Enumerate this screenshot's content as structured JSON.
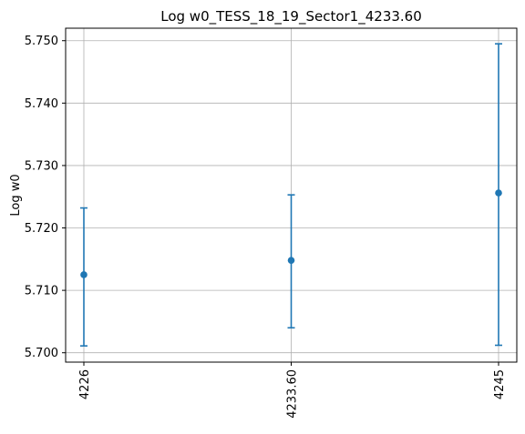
{
  "chart_data": {
    "type": "scatter",
    "title": "Log w0_TESS_18_19_Sector1_4233.60",
    "xlabel": "",
    "ylabel": "Log w0",
    "categories": [
      "4226",
      "4233.60",
      "4245"
    ],
    "series": [
      {
        "values": [
          5.7125,
          5.7148,
          5.7256
        ],
        "err_low": [
          5.7011,
          5.704,
          5.7012
        ],
        "err_high": [
          5.7232,
          5.7253,
          5.7495
        ]
      }
    ],
    "ylim": [
      5.6985,
      5.752
    ],
    "yticks": [
      "5.700",
      "5.710",
      "5.720",
      "5.730",
      "5.740",
      "5.750"
    ],
    "grid": true,
    "colors": {
      "series": "#1f77b4",
      "grid": "#b0b0b0",
      "axis": "#000000"
    }
  }
}
